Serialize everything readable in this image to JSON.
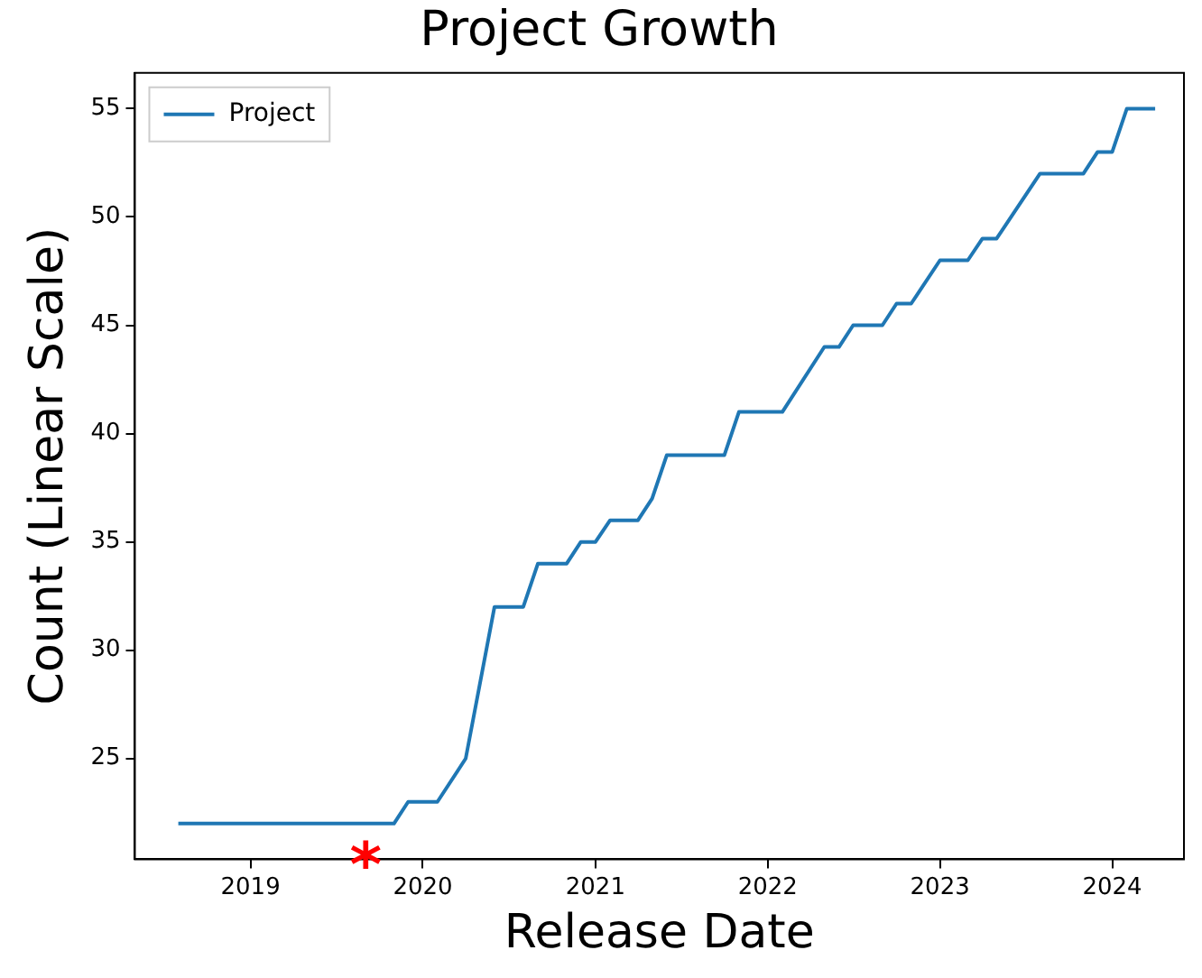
{
  "chart_data": {
    "type": "line",
    "title": "Project Growth",
    "xlabel": "Release Date",
    "ylabel": "Count (Linear Scale)",
    "x": [
      "2018-08",
      "2019-11",
      "2019-12",
      "2020-02",
      "2020-04",
      "2020-06",
      "2020-08",
      "2020-09",
      "2020-11",
      "2020-12",
      "2021-01",
      "2021-02",
      "2021-04",
      "2021-05",
      "2021-06",
      "2021-10",
      "2021-11",
      "2022-02",
      "2022-05",
      "2022-06",
      "2022-07",
      "2022-09",
      "2022-10",
      "2022-11",
      "2023-01",
      "2023-03",
      "2023-04",
      "2023-05",
      "2023-08",
      "2023-11",
      "2023-12",
      "2024-01",
      "2024-02",
      "2024-04"
    ],
    "series": [
      {
        "name": "Project",
        "color": "#1f77b4",
        "values": [
          22,
          22,
          23,
          23,
          25,
          32,
          32,
          34,
          34,
          35,
          35,
          36,
          36,
          37,
          39,
          39,
          41,
          41,
          44,
          44,
          45,
          45,
          46,
          46,
          48,
          48,
          49,
          49,
          52,
          52,
          53,
          53,
          55,
          55
        ]
      }
    ],
    "xlim": [
      "2018-05",
      "2024-06"
    ],
    "xticks": [
      {
        "value": "2019",
        "label": "2019"
      },
      {
        "value": "2020",
        "label": "2020"
      },
      {
        "value": "2021",
        "label": "2021"
      },
      {
        "value": "2022",
        "label": "2022"
      },
      {
        "value": "2023",
        "label": "2023"
      },
      {
        "value": "2024",
        "label": "2024"
      }
    ],
    "ylim": [
      20.35,
      56.65
    ],
    "yticks": [
      25,
      30,
      35,
      40,
      45,
      50,
      55
    ],
    "grid": false,
    "legend": "top left",
    "marker": "none",
    "line_style": "solid",
    "annotations": [
      "*"
    ]
  }
}
